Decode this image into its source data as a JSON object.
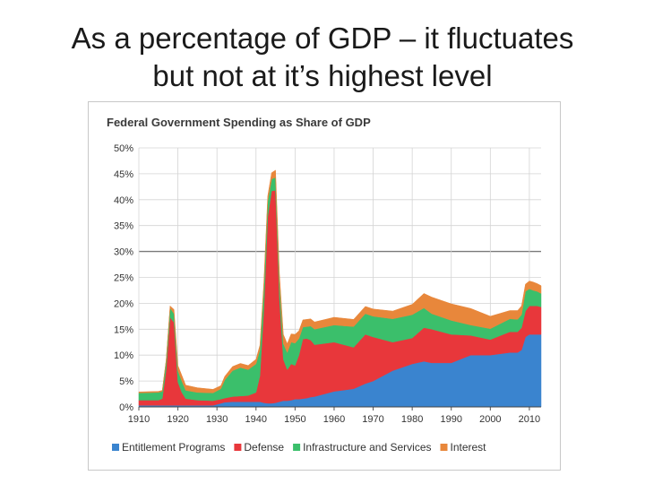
{
  "slide": {
    "title_line1": "As a percentage of GDP – it fluctuates",
    "title_line2": "but not at it’s highest level"
  },
  "chart_data": {
    "type": "area",
    "stacked": true,
    "title": "Federal Government Spending as Share of GDP",
    "xlabel": "",
    "ylabel": "",
    "xlim": [
      1910,
      2013
    ],
    "ylim": [
      0,
      50
    ],
    "x_ticks": [
      1910,
      1920,
      1930,
      1940,
      1950,
      1960,
      1970,
      1980,
      1990,
      2000,
      2010
    ],
    "y_ticks": [
      0,
      5,
      10,
      15,
      20,
      25,
      30,
      35,
      40,
      45,
      50
    ],
    "y_tick_labels": [
      "0%",
      "5%",
      "10%",
      "15%",
      "20%",
      "25%",
      "30%",
      "35%",
      "40%",
      "45%",
      "50%"
    ],
    "highlight_gridline": 30,
    "legend_position": "bottom",
    "x": [
      1910,
      1915,
      1916,
      1917,
      1918,
      1919,
      1920,
      1921,
      1922,
      1925,
      1929,
      1931,
      1932,
      1934,
      1936,
      1938,
      1940,
      1941,
      1942,
      1943,
      1944,
      1945,
      1946,
      1947,
      1948,
      1949,
      1950,
      1951,
      1952,
      1953,
      1954,
      1955,
      1960,
      1965,
      1968,
      1970,
      1975,
      1980,
      1983,
      1985,
      1990,
      1995,
      2000,
      2005,
      2007,
      2008,
      2009,
      2010,
      2011,
      2012,
      2013
    ],
    "series": [
      {
        "name": "Entitlement Programs",
        "color": "#3a84cf",
        "values": [
          0.3,
          0.3,
          0.3,
          0.3,
          0.3,
          0.3,
          0.3,
          0.3,
          0.3,
          0.3,
          0.3,
          0.7,
          0.9,
          1.0,
          1.0,
          1.0,
          1.0,
          1.0,
          0.8,
          0.7,
          0.7,
          0.8,
          1.0,
          1.2,
          1.2,
          1.3,
          1.5,
          1.5,
          1.6,
          1.7,
          1.9,
          2.0,
          3.0,
          3.5,
          4.5,
          5.0,
          7.0,
          8.3,
          8.8,
          8.5,
          8.5,
          10.0,
          10.0,
          10.5,
          10.5,
          11.0,
          13.5,
          14.0,
          14.0,
          14.0,
          14.0
        ]
      },
      {
        "name": "Defense",
        "color": "#e8373b",
        "values": [
          1.0,
          1.0,
          1.3,
          7.0,
          17.0,
          16.0,
          4.5,
          2.5,
          1.3,
          1.0,
          0.9,
          0.8,
          0.8,
          1.0,
          1.1,
          1.2,
          1.8,
          5.0,
          18.0,
          36.0,
          41.0,
          41.0,
          20.0,
          8.0,
          6.0,
          7.0,
          6.5,
          8.5,
          11.5,
          11.5,
          11.0,
          10.0,
          9.5,
          8.0,
          9.5,
          8.5,
          5.5,
          5.0,
          6.5,
          6.5,
          5.5,
          3.8,
          3.0,
          4.0,
          4.0,
          4.3,
          5.0,
          5.5,
          5.5,
          5.5,
          5.3
        ]
      },
      {
        "name": "Infrastructure and Services",
        "color": "#3bbf6b",
        "values": [
          1.4,
          1.5,
          1.4,
          1.6,
          1.8,
          1.7,
          2.2,
          2.2,
          1.6,
          1.5,
          1.5,
          2.0,
          3.5,
          5.0,
          5.5,
          5.0,
          5.5,
          5.0,
          4.2,
          3.0,
          2.3,
          2.5,
          3.0,
          3.0,
          3.3,
          4.2,
          4.3,
          3.2,
          2.3,
          2.3,
          2.7,
          3.0,
          3.3,
          4.0,
          4.0,
          4.0,
          4.5,
          4.5,
          3.8,
          3.0,
          2.7,
          2.0,
          2.1,
          2.5,
          2.4,
          2.5,
          3.8,
          3.3,
          3.0,
          2.8,
          2.6
        ]
      },
      {
        "name": "Interest",
        "color": "#e8873b",
        "values": [
          0.2,
          0.2,
          0.2,
          0.2,
          0.4,
          0.8,
          1.0,
          1.1,
          1.0,
          0.9,
          0.7,
          0.6,
          0.7,
          0.8,
          0.8,
          0.8,
          0.9,
          0.9,
          0.9,
          1.0,
          1.2,
          1.4,
          1.7,
          1.8,
          1.7,
          1.6,
          1.7,
          1.5,
          1.4,
          1.4,
          1.4,
          1.4,
          1.5,
          1.4,
          1.4,
          1.4,
          1.5,
          2.0,
          2.8,
          3.2,
          3.2,
          3.2,
          2.4,
          1.6,
          1.7,
          1.7,
          1.4,
          1.5,
          1.6,
          1.5,
          1.5
        ]
      }
    ]
  }
}
